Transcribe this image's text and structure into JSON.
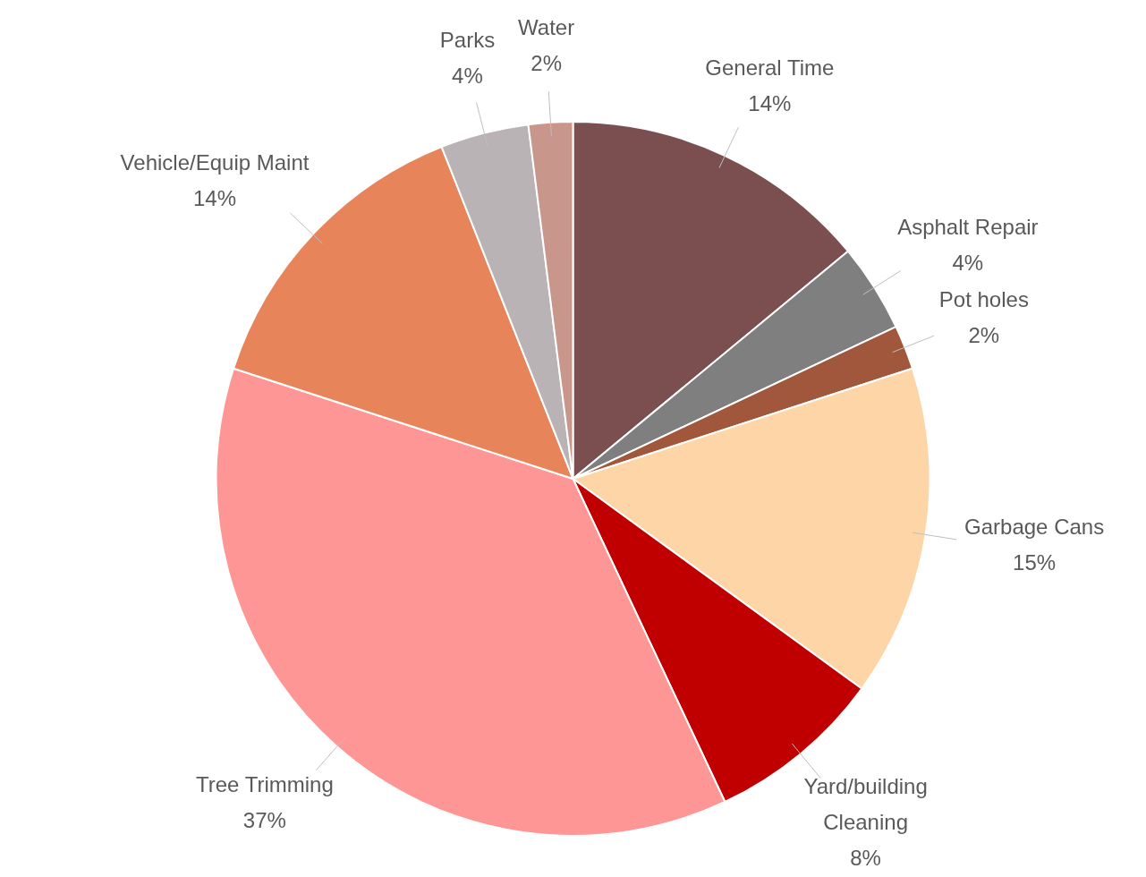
{
  "chart_data": {
    "type": "pie",
    "categories": [
      "General Time",
      "Asphalt Repair",
      "Pot holes",
      "Garbage Cans",
      "Yard/building Cleaning",
      "Tree Trimming",
      "Vehicle/Equip Maint",
      "Parks",
      "Water"
    ],
    "values": [
      14,
      4,
      2,
      15,
      8,
      37,
      14,
      4,
      2
    ],
    "value_labels": [
      "14%",
      "4%",
      "2%",
      "15%",
      "8%",
      "37%",
      "14%",
      "4%",
      "2%"
    ],
    "colors": [
      "#7b4f4f",
      "#7f7f7f",
      "#a0573b",
      "#fdd5a6",
      "#c00000",
      "#ff9696",
      "#e8845a",
      "#bab3b5",
      "#c8968b"
    ],
    "legend": false
  }
}
